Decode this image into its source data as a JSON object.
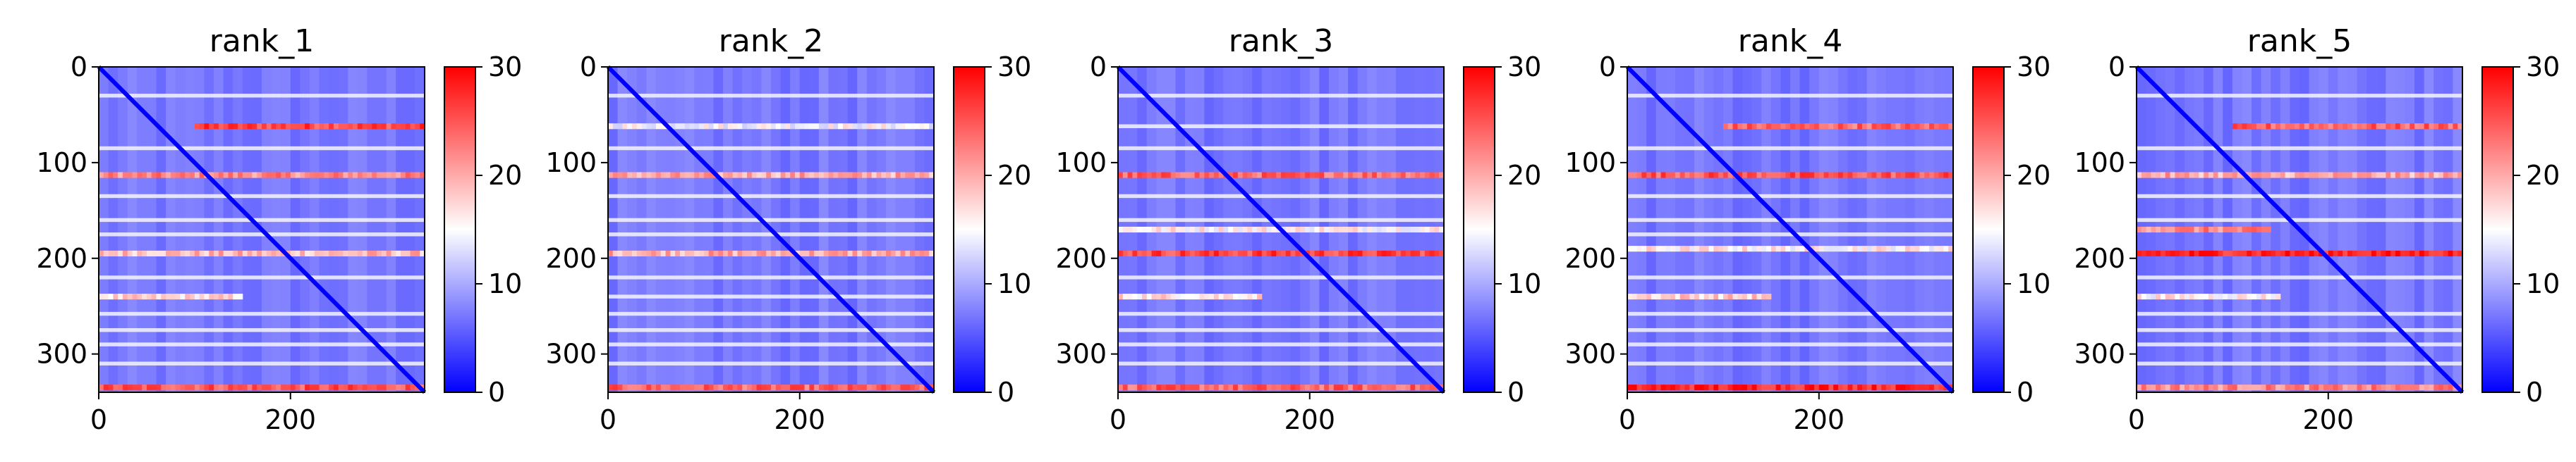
{
  "chart_data": [
    {
      "type": "heatmap",
      "title": "rank_1",
      "matrix_size": 340,
      "xlim": [
        0,
        340
      ],
      "ylim": [
        340,
        0
      ],
      "xticks": [
        0,
        200
      ],
      "yticks": [
        0,
        100,
        200,
        300
      ],
      "colorbar": {
        "range": [
          0,
          30
        ],
        "ticks": [
          0,
          10,
          20,
          30
        ],
        "colormap": "bwr"
      },
      "diagonal": 0,
      "background_mean": 7,
      "red_bands": [
        {
          "row": 62,
          "value": 26,
          "from": 100,
          "to": 340
        },
        {
          "row": 113,
          "value": 22,
          "from": 0,
          "to": 340
        },
        {
          "row": 195,
          "value": 19,
          "from": 0,
          "to": 340
        },
        {
          "row": 240,
          "value": 17,
          "from": 0,
          "to": 150
        },
        {
          "row": 335,
          "value": 25,
          "from": 0,
          "to": 340
        }
      ],
      "white_bands": [
        30,
        85,
        135,
        160,
        175,
        220,
        258,
        275,
        290,
        310
      ]
    },
    {
      "type": "heatmap",
      "title": "rank_2",
      "matrix_size": 340,
      "xlim": [
        0,
        340
      ],
      "ylim": [
        340,
        0
      ],
      "xticks": [
        0,
        200
      ],
      "yticks": [
        0,
        100,
        200,
        300
      ],
      "colorbar": {
        "range": [
          0,
          30
        ],
        "ticks": [
          0,
          10,
          20,
          30
        ],
        "colormap": "bwr"
      },
      "diagonal": 0,
      "background_mean": 7,
      "red_bands": [
        {
          "row": 62,
          "value": 15,
          "from": 0,
          "to": 340
        },
        {
          "row": 113,
          "value": 20,
          "from": 0,
          "to": 340
        },
        {
          "row": 195,
          "value": 20,
          "from": 0,
          "to": 340
        },
        {
          "row": 335,
          "value": 24,
          "from": 0,
          "to": 340
        }
      ],
      "white_bands": [
        30,
        85,
        135,
        160,
        175,
        220,
        240,
        258,
        275,
        290,
        310
      ]
    },
    {
      "type": "heatmap",
      "title": "rank_3",
      "matrix_size": 340,
      "xlim": [
        0,
        340
      ],
      "ylim": [
        340,
        0
      ],
      "xticks": [
        0,
        200
      ],
      "yticks": [
        0,
        100,
        200,
        300
      ],
      "colorbar": {
        "range": [
          0,
          30
        ],
        "ticks": [
          0,
          10,
          20,
          30
        ],
        "colormap": "bwr"
      },
      "diagonal": 0,
      "background_mean": 7,
      "red_bands": [
        {
          "row": 113,
          "value": 24,
          "from": 0,
          "to": 340
        },
        {
          "row": 170,
          "value": 16,
          "from": 0,
          "to": 340
        },
        {
          "row": 195,
          "value": 26,
          "from": 0,
          "to": 340
        },
        {
          "row": 240,
          "value": 17,
          "from": 0,
          "to": 150
        },
        {
          "row": 335,
          "value": 24,
          "from": 0,
          "to": 340
        }
      ],
      "white_bands": [
        30,
        62,
        85,
        135,
        160,
        220,
        258,
        275,
        290,
        310
      ]
    },
    {
      "type": "heatmap",
      "title": "rank_4",
      "matrix_size": 340,
      "xlim": [
        0,
        340
      ],
      "ylim": [
        340,
        0
      ],
      "xticks": [
        0,
        200
      ],
      "yticks": [
        0,
        100,
        200,
        300
      ],
      "colorbar": {
        "range": [
          0,
          30
        ],
        "ticks": [
          0,
          10,
          20,
          30
        ],
        "colormap": "bwr"
      },
      "diagonal": 0,
      "background_mean": 7,
      "red_bands": [
        {
          "row": 62,
          "value": 24,
          "from": 100,
          "to": 340
        },
        {
          "row": 113,
          "value": 25,
          "from": 0,
          "to": 340
        },
        {
          "row": 190,
          "value": 16,
          "from": 0,
          "to": 340
        },
        {
          "row": 240,
          "value": 18,
          "from": 0,
          "to": 150
        },
        {
          "row": 335,
          "value": 28,
          "from": 0,
          "to": 340
        }
      ],
      "white_bands": [
        30,
        85,
        135,
        160,
        175,
        220,
        258,
        275,
        290,
        310
      ]
    },
    {
      "type": "heatmap",
      "title": "rank_5",
      "matrix_size": 340,
      "xlim": [
        0,
        340
      ],
      "ylim": [
        340,
        0
      ],
      "xticks": [
        0,
        200
      ],
      "yticks": [
        0,
        100,
        200,
        300
      ],
      "colorbar": {
        "range": [
          0,
          30
        ],
        "ticks": [
          0,
          10,
          20,
          30
        ],
        "colormap": "bwr"
      },
      "diagonal": 0,
      "background_mean": 7,
      "red_bands": [
        {
          "row": 62,
          "value": 24,
          "from": 100,
          "to": 340
        },
        {
          "row": 113,
          "value": 20,
          "from": 0,
          "to": 340
        },
        {
          "row": 170,
          "value": 22,
          "from": 0,
          "to": 140
        },
        {
          "row": 195,
          "value": 28,
          "from": 0,
          "to": 340
        },
        {
          "row": 240,
          "value": 16,
          "from": 0,
          "to": 150
        },
        {
          "row": 335,
          "value": 22,
          "from": 0,
          "to": 340
        }
      ],
      "white_bands": [
        30,
        85,
        135,
        160,
        220,
        258,
        275,
        290,
        310
      ]
    }
  ]
}
